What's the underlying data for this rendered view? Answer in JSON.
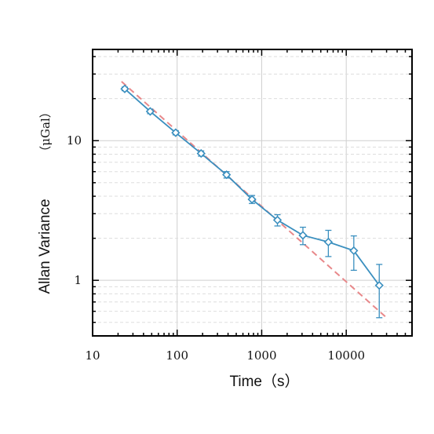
{
  "chart_data": {
    "type": "line",
    "xlabel": "Time（s）",
    "ylabel": "Allan Variance",
    "yunit": "（μGal）",
    "xscale": "log",
    "yscale": "log",
    "xlim": [
      10,
      60000
    ],
    "ylim": [
      0.4,
      45
    ],
    "x_ticks": [
      10,
      100,
      1000,
      10000
    ],
    "x_tick_labels": [
      "10",
      "100",
      "1000",
      "10000"
    ],
    "y_ticks": [
      1,
      10
    ],
    "y_tick_labels": [
      "1",
      "10"
    ],
    "grid": "major x; major and minor y (dashed minor)",
    "series": [
      {
        "kind": "measured",
        "color": "#3a8fbf",
        "marker": "diamond",
        "x": [
          24,
          48,
          96,
          192,
          384,
          768,
          1536,
          3072,
          6144,
          12288,
          24576
        ],
        "y": [
          23.5,
          16.2,
          11.4,
          8.1,
          5.7,
          3.8,
          2.7,
          2.1,
          1.88,
          1.63,
          0.92
        ],
        "err": [
          0.7,
          0.6,
          0.4,
          0.35,
          0.3,
          0.25,
          0.25,
          0.3,
          0.4,
          0.45,
          0.38
        ]
      },
      {
        "kind": "fit",
        "color": "#e8888a",
        "dash": true,
        "x": [
          22,
          30000
        ],
        "y": [
          26.5,
          0.54
        ]
      }
    ]
  }
}
